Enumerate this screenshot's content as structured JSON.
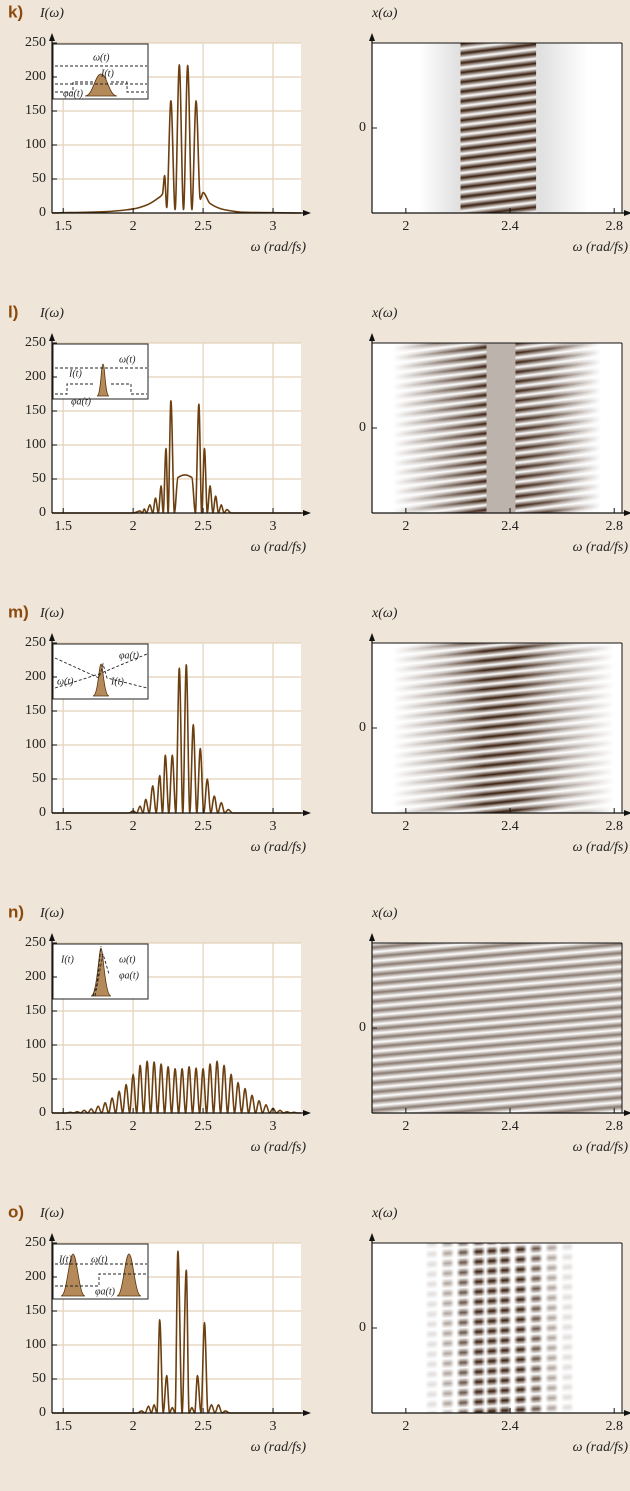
{
  "chart_data": [
    {
      "type": "line",
      "panel_label": "k)",
      "ylabel": "I(ω)",
      "xlabel": "ω (rad/fs)",
      "color": "#6b3f10",
      "grid": true,
      "xlim": [
        1.42,
        3.2
      ],
      "ylim": [
        0,
        250
      ],
      "xticks": [
        1.5,
        2,
        2.5,
        3
      ],
      "yticks": [
        0,
        50,
        100,
        150,
        200,
        250
      ],
      "inset_labels": [
        "ω(t)",
        "I(t)",
        "φa(t)"
      ],
      "x": [
        1.42,
        1.8,
        2.0,
        2.1,
        2.18,
        2.21,
        2.225,
        2.24,
        2.27,
        2.3,
        2.33,
        2.36,
        2.39,
        2.42,
        2.45,
        2.48,
        2.5,
        2.55,
        2.65,
        2.8,
        3.2
      ],
      "values": [
        0,
        2,
        6,
        12,
        22,
        28,
        55,
        8,
        165,
        5,
        218,
        5,
        217,
        5,
        165,
        20,
        30,
        14,
        5,
        1,
        0
      ]
    },
    {
      "type": "image",
      "ylabel": "x(ω)",
      "xlabel": "ω (rad/fs)",
      "xlim": [
        1.87,
        2.83
      ],
      "ylim": [
        -1,
        1
      ],
      "xticks": [
        2,
        2.4,
        2.8
      ],
      "yticks": [
        0
      ]
    },
    {
      "type": "line",
      "panel_label": "l)",
      "ylabel": "I(ω)",
      "xlabel": "ω (rad/fs)",
      "color": "#6b3f10",
      "grid": true,
      "xlim": [
        1.42,
        3.2
      ],
      "ylim": [
        0,
        250
      ],
      "xticks": [
        1.5,
        2,
        2.5,
        3
      ],
      "yticks": [
        0,
        50,
        100,
        150,
        200,
        250
      ],
      "inset_labels": [
        "I(t)",
        "ω(t)",
        "φa(t)"
      ],
      "x": [
        1.42,
        2.0,
        2.05,
        2.065,
        2.08,
        2.095,
        2.12,
        2.14,
        2.16,
        2.18,
        2.2,
        2.215,
        2.235,
        2.25,
        2.27,
        2.295,
        2.32,
        2.37,
        2.42,
        2.445,
        2.47,
        2.49,
        2.51,
        2.53,
        2.55,
        2.57,
        2.59,
        2.61,
        2.63,
        2.65,
        2.67,
        2.7,
        3.2
      ],
      "values": [
        0,
        0,
        3,
        0,
        6,
        0,
        12,
        0,
        22,
        0,
        40,
        0,
        95,
        0,
        165,
        0,
        52,
        56,
        52,
        0,
        160,
        0,
        95,
        0,
        40,
        0,
        25,
        0,
        12,
        0,
        5,
        0,
        0
      ]
    },
    {
      "type": "image",
      "ylabel": "x(ω)",
      "xlabel": "ω (rad/fs)",
      "xlim": [
        1.87,
        2.83
      ],
      "ylim": [
        -1,
        1
      ],
      "xticks": [
        2,
        2.4,
        2.8
      ],
      "yticks": [
        0
      ]
    },
    {
      "type": "line",
      "panel_label": "m)",
      "ylabel": "I(ω)",
      "xlabel": "ω (rad/fs)",
      "color": "#6b3f10",
      "grid": true,
      "xlim": [
        1.42,
        3.2
      ],
      "ylim": [
        0,
        250
      ],
      "xticks": [
        1.5,
        2,
        2.5,
        3
      ],
      "yticks": [
        0,
        50,
        100,
        150,
        200,
        250
      ],
      "inset_labels": [
        "φa(t)",
        "ω(t)",
        "I(t)"
      ],
      "x": [
        1.42,
        1.97,
        2.0,
        2.025,
        2.05,
        2.07,
        2.09,
        2.115,
        2.14,
        2.165,
        2.19,
        2.21,
        2.23,
        2.255,
        2.28,
        2.305,
        2.33,
        2.355,
        2.38,
        2.405,
        2.43,
        2.455,
        2.48,
        2.505,
        2.53,
        2.555,
        2.58,
        2.605,
        2.63,
        2.655,
        2.68,
        2.71,
        3.2
      ],
      "values": [
        0,
        0,
        3,
        0,
        10,
        0,
        20,
        0,
        40,
        0,
        55,
        0,
        85,
        0,
        85,
        0,
        213,
        0,
        218,
        0,
        130,
        0,
        95,
        0,
        50,
        0,
        25,
        0,
        15,
        0,
        5,
        0,
        0
      ]
    },
    {
      "type": "image",
      "ylabel": "x(ω)",
      "xlabel": "ω (rad/fs)",
      "xlim": [
        1.87,
        2.83
      ],
      "ylim": [
        -1,
        1
      ],
      "xticks": [
        2,
        2.4,
        2.8
      ],
      "yticks": [
        0
      ]
    },
    {
      "type": "line",
      "panel_label": "n)",
      "ylabel": "I(ω)",
      "xlabel": "ω (rad/fs)",
      "color": "#6b3f10",
      "grid": true,
      "xlim": [
        1.42,
        3.2
      ],
      "ylim": [
        0,
        250
      ],
      "xticks": [
        1.5,
        2,
        2.5,
        3
      ],
      "yticks": [
        0,
        50,
        100,
        150,
        200,
        250
      ],
      "inset_labels": [
        "I(t)",
        "ω(t)",
        "φa(t)"
      ],
      "x": [
        1.42,
        1.525,
        1.55,
        1.575,
        1.6,
        1.625,
        1.65,
        1.675,
        1.7,
        1.725,
        1.75,
        1.775,
        1.8,
        1.825,
        1.85,
        1.875,
        1.9,
        1.925,
        1.95,
        1.975,
        2.0,
        2.025,
        2.05,
        2.075,
        2.1,
        2.125,
        2.15,
        2.175,
        2.2,
        2.225,
        2.25,
        2.275,
        2.3,
        2.325,
        2.35,
        2.375,
        2.4,
        2.425,
        2.45,
        2.475,
        2.5,
        2.525,
        2.55,
        2.575,
        2.6,
        2.625,
        2.65,
        2.675,
        2.7,
        2.725,
        2.75,
        2.775,
        2.8,
        2.825,
        2.85,
        2.875,
        2.9,
        2.925,
        2.95,
        2.975,
        3.0,
        3.025,
        3.05,
        3.075,
        3.1,
        3.125,
        3.15,
        3.175,
        3.2
      ],
      "values": [
        0,
        0,
        1,
        0,
        2,
        0,
        4,
        0,
        6,
        0,
        10,
        0,
        15,
        0,
        22,
        0,
        32,
        0,
        42,
        0,
        57,
        0,
        70,
        0,
        76,
        0,
        75,
        0,
        72,
        0,
        68,
        0,
        65,
        0,
        65,
        0,
        68,
        0,
        66,
        0,
        65,
        0,
        72,
        0,
        76,
        0,
        70,
        0,
        57,
        0,
        45,
        0,
        36,
        0,
        26,
        0,
        18,
        0,
        12,
        0,
        7,
        0,
        4,
        0,
        2,
        0,
        1,
        0,
        0
      ]
    },
    {
      "type": "image",
      "ylabel": "x(ω)",
      "xlabel": "ω (rad/fs)",
      "xlim": [
        1.87,
        2.83
      ],
      "ylim": [
        -1,
        1
      ],
      "xticks": [
        2,
        2.4,
        2.8
      ],
      "yticks": [
        0
      ]
    },
    {
      "type": "line",
      "panel_label": "o)",
      "ylabel": "I(ω)",
      "xlabel": "ω (rad/fs)",
      "color": "#6b3f10",
      "grid": true,
      "xlim": [
        1.42,
        3.2
      ],
      "ylim": [
        0,
        250
      ],
      "xticks": [
        1.5,
        2,
        2.5,
        3
      ],
      "yticks": [
        0,
        50,
        100,
        150,
        200,
        250
      ],
      "inset_labels": [
        "I(t)",
        "ω(t)",
        "φa(t)"
      ],
      "x": [
        1.42,
        2.03,
        2.06,
        2.085,
        2.11,
        2.13,
        2.15,
        2.17,
        2.19,
        2.215,
        2.24,
        2.26,
        2.28,
        2.3,
        2.32,
        2.35,
        2.38,
        2.4,
        2.42,
        2.44,
        2.46,
        2.485,
        2.51,
        2.535,
        2.56,
        2.585,
        2.61,
        2.635,
        2.66,
        2.69,
        3.2
      ],
      "values": [
        0,
        0,
        3,
        0,
        10,
        0,
        12,
        0,
        137,
        0,
        55,
        0,
        8,
        0,
        238,
        0,
        210,
        0,
        8,
        0,
        55,
        0,
        133,
        0,
        12,
        0,
        12,
        0,
        3,
        0,
        0
      ]
    },
    {
      "type": "image",
      "ylabel": "x(ω)",
      "xlabel": "ω (rad/fs)",
      "xlim": [
        1.87,
        2.83
      ],
      "ylim": [
        -1,
        1
      ],
      "xticks": [
        2,
        2.4,
        2.8
      ],
      "yticks": [
        0
      ]
    }
  ]
}
